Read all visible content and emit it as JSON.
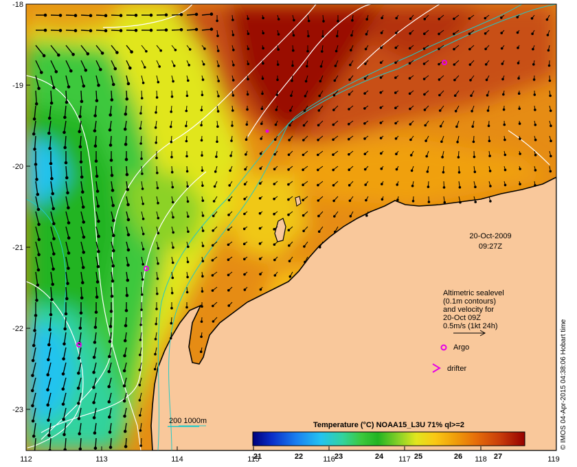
{
  "timestamp": {
    "date": "20-Oct-2009",
    "time": "09:27Z"
  },
  "legend": {
    "altimetry_lines": [
      "Altimetric sealevel",
      "(0.1m contours)",
      "and velocity for",
      "20-Oct 09Z",
      "0.5m/s (1kt 24h)"
    ],
    "argo_label": "Argo",
    "drifter_label": "drifter",
    "depth_label": "200  1000m"
  },
  "colorbar": {
    "title": "Temperature (°C) NOAA15_L3U 71% ql>=2",
    "ticks": [
      "21",
      "22",
      "23",
      "24",
      "25",
      "26",
      "27"
    ],
    "colors": [
      "#00007a",
      "#0a2ec8",
      "#1a7ff0",
      "#24c3f0",
      "#32d39e",
      "#3cc83c",
      "#22b422",
      "#8cd228",
      "#e1e61e",
      "#fac814",
      "#f0a00a",
      "#e66e0a",
      "#c83c0a",
      "#960000"
    ]
  },
  "axes": {
    "lat_labels": [
      "-18",
      "-19",
      "-20",
      "-21",
      "-22",
      "-23"
    ],
    "lon_labels": [
      "112",
      "113",
      "114",
      "115",
      "116",
      "117",
      "118",
      "119"
    ]
  },
  "credit": "© IMOS 04-Apr-2015 04:38:06 Hobart time",
  "colors": {
    "land": "#f9c89b",
    "ocean_warm": "#c95a05",
    "ocean_cool": "#3cb44b",
    "argo": "#e600e6",
    "depth_contour": "#22c8c8"
  }
}
